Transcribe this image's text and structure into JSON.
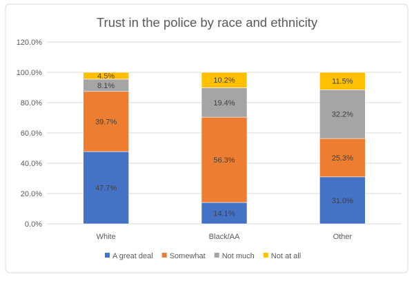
{
  "chart_data": {
    "type": "bar",
    "stacked": true,
    "title": "Trust in the police by race and ethnicity",
    "xlabel": "",
    "ylabel": "",
    "categories": [
      "White",
      "Black/AA",
      "Other"
    ],
    "series": [
      {
        "name": "A great deal",
        "color": "#4472C4",
        "values": [
          47.7,
          14.1,
          31.0
        ],
        "labels": [
          "47.7%",
          "14.1%",
          "31.0%"
        ]
      },
      {
        "name": "Somewhat",
        "color": "#ED7D31",
        "values": [
          39.7,
          56.3,
          25.3
        ],
        "labels": [
          "39.7%",
          "56.3%",
          "25.3%"
        ]
      },
      {
        "name": "Not much",
        "color": "#A5A5A5",
        "values": [
          8.1,
          19.4,
          32.2
        ],
        "labels": [
          "8.1%",
          "19.4%",
          "32.2%"
        ]
      },
      {
        "name": "Not at all",
        "color": "#FFC000",
        "values": [
          4.5,
          10.2,
          11.5
        ],
        "labels": [
          "4.5%",
          "10.2%",
          "11.5%"
        ]
      }
    ],
    "ylim": [
      0,
      120
    ],
    "yticks": [
      "0.0%",
      "20.0%",
      "40.0%",
      "60.0%",
      "80.0%",
      "100.0%",
      "120.0%"
    ],
    "grid": true,
    "legend": "bottom"
  }
}
